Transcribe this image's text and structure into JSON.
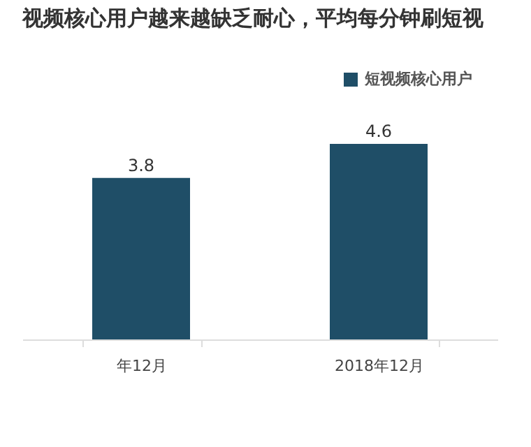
{
  "chart_data": {
    "type": "bar",
    "title": "视频核心用户越来越缺乏耐心，平均每分钟刷短视",
    "categories": [
      "年12月",
      "2018年12月"
    ],
    "series": [
      {
        "name": "短视频核心用户",
        "color": "#1f4e67",
        "values": [
          3.8,
          4.6
        ]
      }
    ],
    "data_labels": true,
    "legend": "top right",
    "grid": false
  }
}
